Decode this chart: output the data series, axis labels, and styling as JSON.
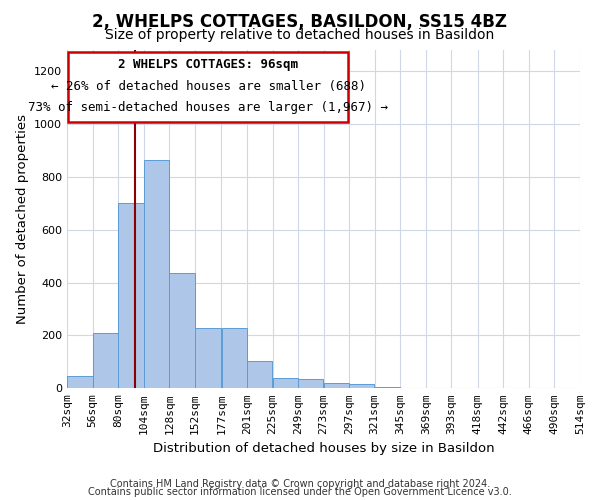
{
  "title": "2, WHELPS COTTAGES, BASILDON, SS15 4BZ",
  "subtitle": "Size of property relative to detached houses in Basildon",
  "xlabel": "Distribution of detached houses by size in Basildon",
  "ylabel": "Number of detached properties",
  "footer_line1": "Contains HM Land Registry data © Crown copyright and database right 2024.",
  "footer_line2": "Contains public sector information licensed under the Open Government Licence v3.0.",
  "annotation_line1": "2 WHELPS COTTAGES: 96sqm",
  "annotation_line2": "← 26% of detached houses are smaller (688)",
  "annotation_line3": "73% of semi-detached houses are larger (1,967) →",
  "property_size": 96,
  "bar_color": "#aec6e8",
  "bar_edge_color": "#5b9bd5",
  "vline_color": "#8b0000",
  "vline_x": 96,
  "background_color": "#ffffff",
  "grid_color": "#d0d8e8",
  "bins": [
    32,
    56,
    80,
    104,
    128,
    152,
    177,
    201,
    225,
    249,
    273,
    297,
    321,
    345,
    369,
    393,
    418,
    442,
    466,
    490,
    514
  ],
  "counts": [
    45,
    210,
    700,
    865,
    435,
    230,
    230,
    105,
    40,
    35,
    20,
    15,
    5,
    0,
    0,
    0,
    0,
    0,
    0,
    0
  ],
  "ylim": [
    0,
    1280
  ],
  "yticks": [
    0,
    200,
    400,
    600,
    800,
    1000,
    1200
  ],
  "annotation_box_color": "#ffffff",
  "annotation_box_edge": "#cc0000",
  "title_fontsize": 12,
  "subtitle_fontsize": 10,
  "axis_label_fontsize": 9.5,
  "tick_fontsize": 8,
  "annotation_fontsize": 9,
  "footer_fontsize": 7
}
